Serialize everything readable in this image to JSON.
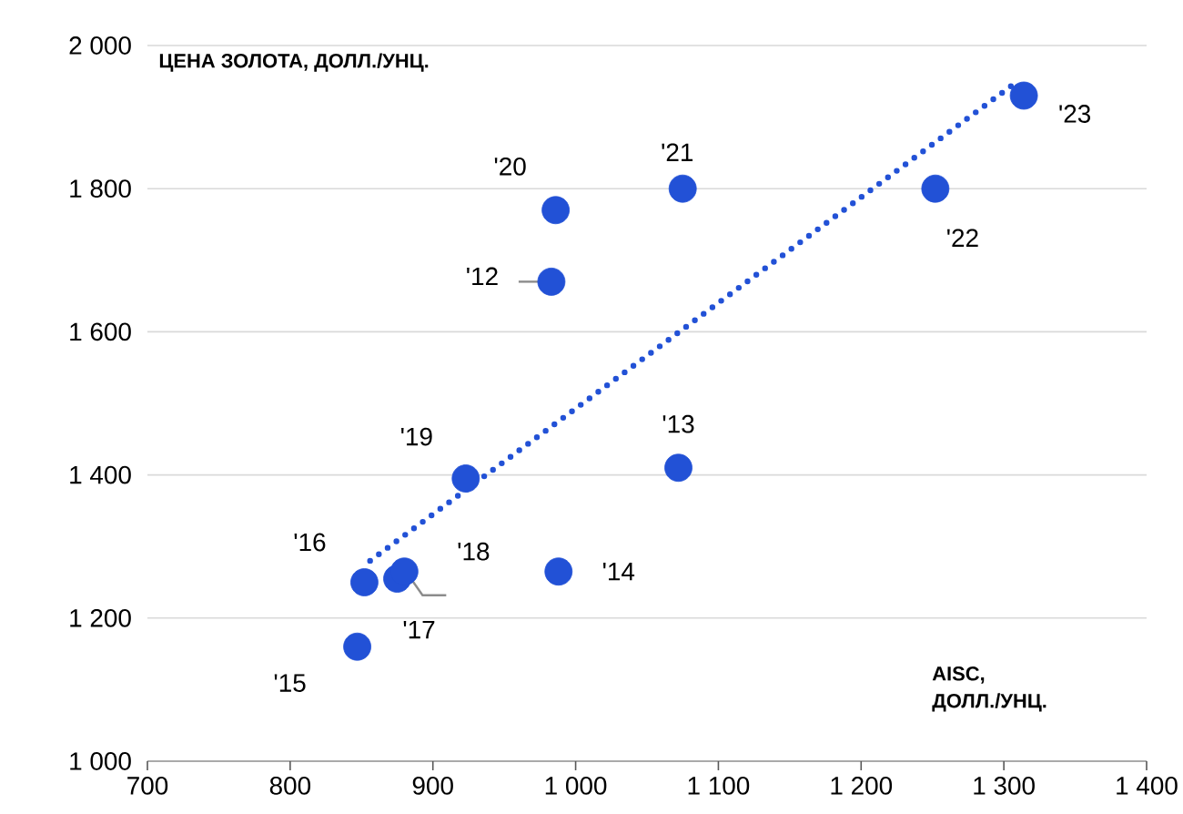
{
  "chart_data": {
    "type": "scatter",
    "xlabel": "AISC, ДОЛЛ./УНЦ.",
    "ylabel": "ЦЕНА ЗОЛОТА, ДОЛЛ./УНЦ.",
    "xlim": [
      700,
      1400
    ],
    "ylim": [
      1000,
      2000
    ],
    "xticks": [
      700,
      800,
      900,
      {
        "value": 1000,
        "label": "1 000"
      },
      {
        "value": 1100,
        "label": "1 100"
      },
      {
        "value": 1200,
        "label": "1 200"
      },
      {
        "value": 1300,
        "label": "1 300"
      },
      {
        "value": 1400,
        "label": "1 400"
      }
    ],
    "yticks": [
      {
        "value": 1000,
        "label": "1 000"
      },
      {
        "value": 1200,
        "label": "1 200"
      },
      {
        "value": 1400,
        "label": "1 400"
      },
      {
        "value": 1600,
        "label": "1 600"
      },
      {
        "value": 1800,
        "label": "1 800"
      },
      {
        "value": 2000,
        "label": "2 000"
      }
    ],
    "grid": "y",
    "marker": "circle",
    "series": [
      {
        "color": "#2251d6",
        "x": [
          983,
          1072,
          988,
          847,
          852,
          875,
          880,
          923,
          986,
          1075,
          1252,
          1314
        ],
        "values": [
          1670,
          1410,
          1265,
          1160,
          1250,
          1255,
          1265,
          1395,
          1770,
          1800,
          1800,
          1930
        ]
      },
      {
        "type": "line",
        "color": "#2251d6",
        "line_style": "dotted",
        "marker": "none",
        "x": [
          856,
          1311
        ],
        "values": [
          1280,
          1952
        ]
      }
    ],
    "annotations": [
      {
        "text": "'12",
        "x": 983,
        "y": 1670
      },
      {
        "text": "'13",
        "x": 1072,
        "y": 1410
      },
      {
        "text": "'14",
        "x": 988,
        "y": 1265
      },
      {
        "text": "'15",
        "x": 847,
        "y": 1160
      },
      {
        "text": "'16",
        "x": 852,
        "y": 1250
      },
      {
        "text": "'17",
        "x": 875,
        "y": 1255
      },
      {
        "text": "'18",
        "x": 880,
        "y": 1265
      },
      {
        "text": "'19",
        "x": 923,
        "y": 1395
      },
      {
        "text": "'20",
        "x": 986,
        "y": 1770
      },
      {
        "text": "'21",
        "x": 1075,
        "y": 1800
      },
      {
        "text": "'22",
        "x": 1252,
        "y": 1800
      },
      {
        "text": "'23",
        "x": 1314,
        "y": 1930
      }
    ]
  }
}
